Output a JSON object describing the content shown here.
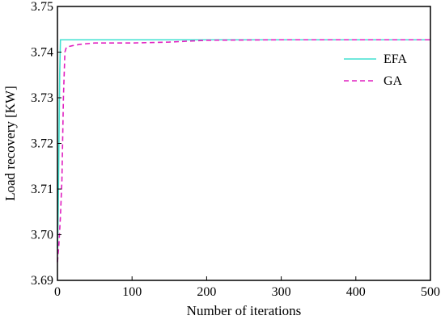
{
  "chart_data": {
    "type": "line",
    "title": "",
    "xlabel": "Number of iterations",
    "ylabel": "Load recovery [KW]",
    "xlim": [
      0,
      500
    ],
    "ylim": [
      3.69,
      3.75
    ],
    "xticks": [
      0,
      100,
      200,
      300,
      400,
      500
    ],
    "yticks": [
      3.69,
      3.7,
      3.71,
      3.72,
      3.73,
      3.74,
      3.75
    ],
    "xtick_labels": [
      "0",
      "100",
      "200",
      "300",
      "400",
      "500"
    ],
    "ytick_labels": [
      "3.69",
      "3.70",
      "3.71",
      "3.72",
      "3.73",
      "3.74",
      "3.75"
    ],
    "grid": false,
    "legend_position": "top-right",
    "series": [
      {
        "name": "EFA",
        "color": "#40e0d0",
        "style": "solid",
        "x": [
          0,
          1,
          2,
          3,
          4,
          5,
          6,
          500
        ],
        "y": [
          3.697,
          3.705,
          3.72,
          3.735,
          3.7427,
          3.7427,
          3.7427,
          3.7427
        ]
      },
      {
        "name": "GA",
        "color": "#e020c0",
        "style": "dashed",
        "x": [
          0,
          2,
          4,
          6,
          8,
          10,
          12,
          20,
          30,
          50,
          100,
          150,
          200,
          300,
          400,
          500
        ],
        "y": [
          3.694,
          3.698,
          3.704,
          3.712,
          3.73,
          3.74,
          3.7411,
          3.7414,
          3.7417,
          3.742,
          3.742,
          3.7422,
          3.7426,
          3.7427,
          3.7427,
          3.7427
        ]
      }
    ]
  }
}
